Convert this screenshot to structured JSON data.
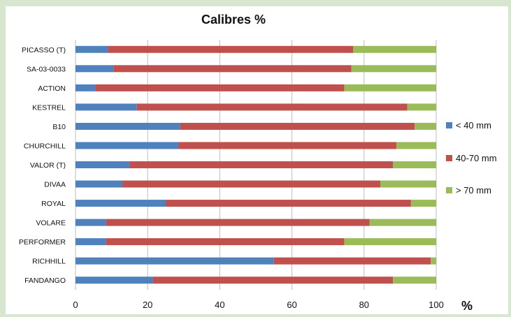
{
  "chart_data": {
    "type": "bar",
    "orientation": "horizontal",
    "stacked": true,
    "title": "Calibres  %",
    "xlabel": "%",
    "ylabel": "",
    "xlim": [
      0,
      100
    ],
    "xticks": [
      "0",
      "20",
      "40",
      "60",
      "80",
      "100"
    ],
    "grid": "vertical",
    "legend_position": "right",
    "categories": [
      "PICASSO (T)",
      "SA-03-0033",
      "ACTION",
      "KESTREL",
      "B10",
      "CHURCHILL",
      "VALOR (T)",
      "DIVAA",
      "ROYAL",
      "VOLARE",
      "PERFORMER",
      "RICHHILL",
      "FANDANGO"
    ],
    "series": [
      {
        "name": "< 40 mm",
        "color": "#4f81bd",
        "values": [
          9,
          10.5,
          5.5,
          17,
          29,
          28.5,
          15,
          13,
          25,
          8.5,
          8.5,
          55,
          21.5
        ]
      },
      {
        "name": "40-70 mm",
        "color": "#c0504d",
        "values": [
          68,
          66,
          69,
          75,
          65,
          60.5,
          73,
          71.5,
          68,
          73,
          66,
          43.5,
          66.5
        ]
      },
      {
        "name": "> 70 mm",
        "color": "#9bbb59",
        "values": [
          23,
          23.5,
          25.5,
          8,
          6,
          11,
          12,
          15.5,
          7,
          18.5,
          25.5,
          1.5,
          12
        ]
      }
    ]
  }
}
